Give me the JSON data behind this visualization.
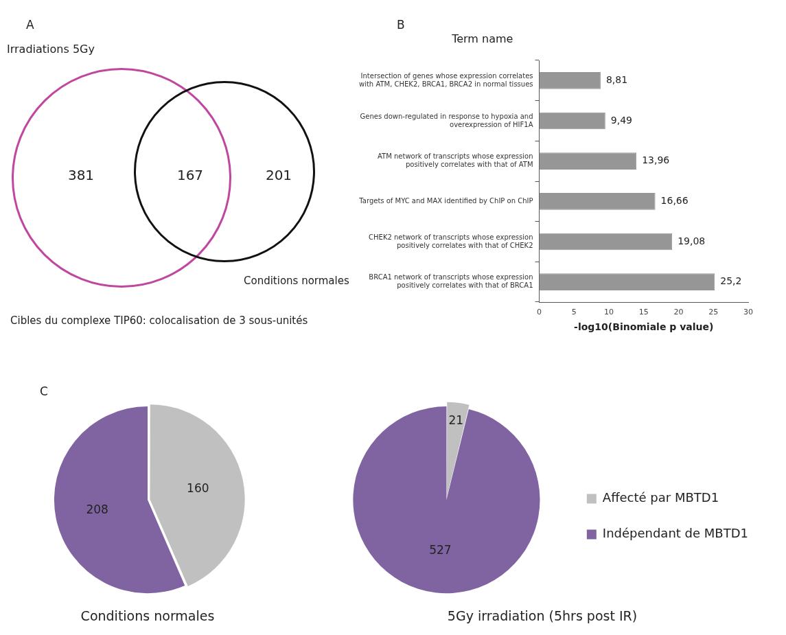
{
  "chart_data": [
    {
      "type": "other",
      "title": "A",
      "annotations": [
        "Irradiations 5Gy",
        "381",
        "167",
        "201",
        "Conditions normales",
        "Cibles du complexe TIP60: colocalisation de 3 sous-unités"
      ]
    },
    {
      "type": "bar",
      "title": "B",
      "ylabel": "Term name",
      "xlabel": "-log10(Binomiale p value)",
      "orientation": "horizontal",
      "categories": [
        "Intersection of genes whose expression correlates with ATM, CHEK2, BRCA1, BRCA2 in normal tissues",
        "Genes down-regulated in response to hypoxia and overexpression of HIF1A",
        "ATM network of transcripts whose expression positively correlates with that of ATM",
        "Targets of MYC and MAX identified by ChIP on ChIP",
        "CHEK2 network of transcripts whose expression positively correlates with that of CHEK2",
        "BRCA1 network of transcripts whose expression positively correlates with that of BRCA1"
      ],
      "values": [
        8.81,
        9.49,
        13.96,
        16.66,
        19.08,
        25.2
      ],
      "value_labels": [
        "8,81",
        "9,49",
        "13,96",
        "16,66",
        "19,08",
        "25,2"
      ],
      "color": "#969696",
      "xlim": [
        0,
        30
      ],
      "xticks": [
        0,
        5,
        10,
        15,
        20,
        25,
        30
      ]
    },
    {
      "type": "pie",
      "title": "Conditions normales",
      "annotations": [
        "C"
      ],
      "categories": [
        null,
        null
      ],
      "values": [
        160,
        208
      ],
      "colors": [
        "#c0c0c0",
        "#8064a2"
      ],
      "data_labels": true
    },
    {
      "type": "pie",
      "title": "5Gy irradiation (5hrs post IR)",
      "categories": [
        "Affecté par MBTD1",
        "Indépendant de MBTD1"
      ],
      "values": [
        21,
        527
      ],
      "colors": [
        "#c0c0c0",
        "#8064a2"
      ],
      "data_labels": true,
      "legend": "right"
    }
  ]
}
